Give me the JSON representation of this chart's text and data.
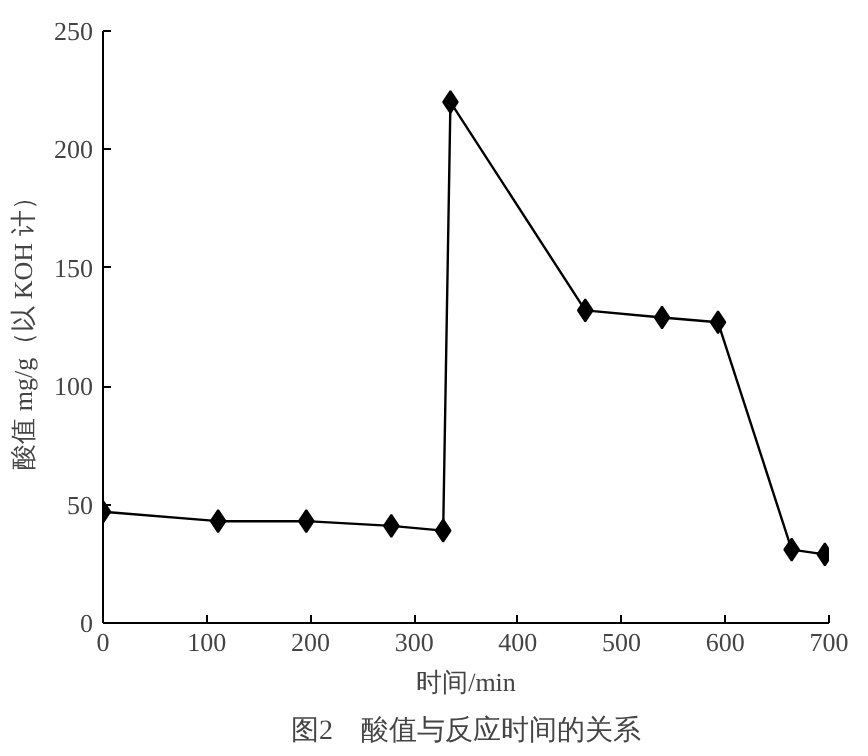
{
  "chart_data": {
    "type": "line",
    "title": "图2　酸值与反应时间的关系",
    "xlabel": "时间/min",
    "ylabel": "酸值 mg/g（以 KOH 计）",
    "x": [
      0,
      111,
      196,
      278,
      328,
      335,
      465,
      539,
      593,
      664,
      696
    ],
    "series": [
      {
        "color": "#000000",
        "values": [
          47,
          43,
          43,
          41,
          39,
          220,
          132,
          129,
          127,
          31,
          29
        ]
      }
    ],
    "xlim": [
      0,
      700
    ],
    "ylim": [
      0,
      250
    ],
    "xticks": [
      0,
      100,
      200,
      300,
      400,
      500,
      600,
      700
    ],
    "yticks": [
      0,
      50,
      100,
      150,
      200,
      250
    ],
    "grid": false,
    "marker": "diamond",
    "line_style": "solid"
  }
}
